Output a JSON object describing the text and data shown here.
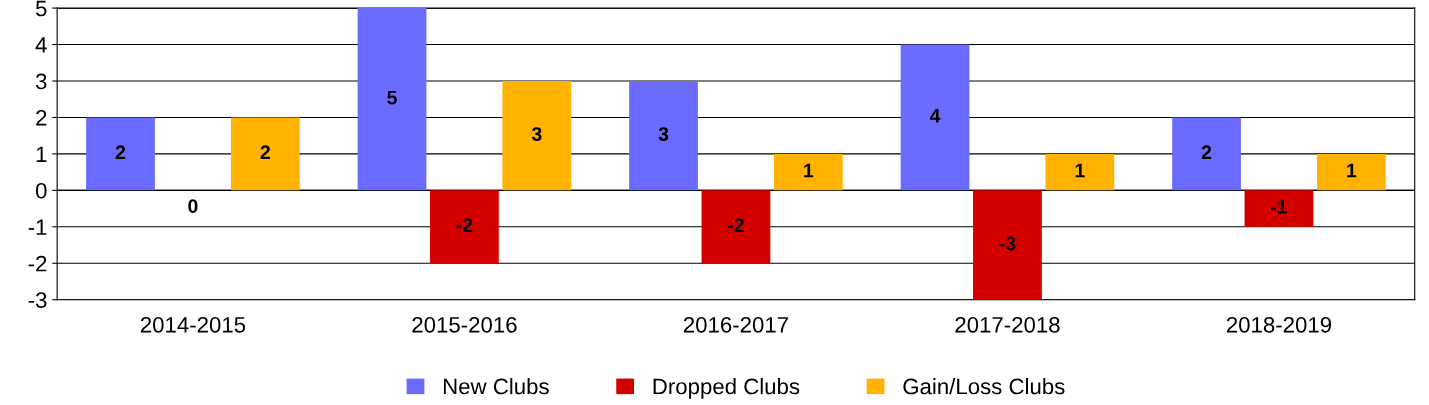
{
  "chart_data": {
    "type": "bar",
    "categories": [
      "2014-2015",
      "2015-2016",
      "2016-2017",
      "2017-2018",
      "2018-2019"
    ],
    "series": [
      {
        "name": "New Clubs",
        "color": "#6b6bff",
        "values": [
          2,
          5,
          3,
          4,
          2
        ]
      },
      {
        "name": "Dropped Clubs",
        "color": "#d40000",
        "values": [
          0,
          -2,
          -2,
          -3,
          -1
        ]
      },
      {
        "name": "Gain/Loss Clubs",
        "color": "#ffb300",
        "values": [
          2,
          3,
          1,
          1,
          1
        ]
      }
    ],
    "ylim": [
      -3,
      5
    ],
    "yticks": [
      -3,
      -2,
      -1,
      0,
      1,
      2,
      3,
      4,
      5
    ],
    "grid": "y",
    "legend": "bottom",
    "data_labels": true
  }
}
